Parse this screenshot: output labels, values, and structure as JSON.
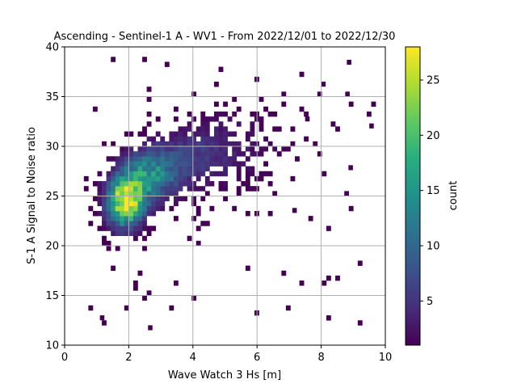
{
  "chart_data": {
    "type": "heatmap",
    "title": "Ascending - Sentinel-1 A - WV1 - From 2022/12/01 to 2022/12/30",
    "xlabel": "Wave Watch 3 Hs [m]",
    "ylabel": "S-1 A Signal to Noise ratio",
    "xlim": [
      0,
      10
    ],
    "ylim": [
      10,
      40
    ],
    "xticks": [
      "0",
      "2",
      "4",
      "6",
      "8",
      "10"
    ],
    "yticks": [
      "10",
      "15",
      "20",
      "25",
      "30",
      "35",
      "40"
    ],
    "grid": true,
    "bin_width_x": 0.14,
    "bin_height_y": 0.5,
    "colormap": "viridis",
    "colorbar": {
      "label": "count",
      "range": [
        1,
        28
      ],
      "ticks": [
        "5",
        "10",
        "15",
        "20",
        "25"
      ]
    },
    "density_model": {
      "peak_count": 27,
      "peak_hs": 1.9,
      "peak_snr": 24.5,
      "hs_range": [
        0.6,
        9.5
      ],
      "snr_range": [
        11.0,
        38.5
      ]
    },
    "colors": {
      "grid": "#b0b0b0",
      "axes": "#000000",
      "background": "#ffffff"
    }
  }
}
